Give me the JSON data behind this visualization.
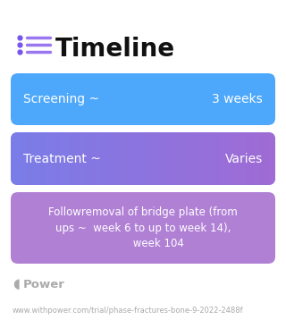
{
  "title": "Timeline",
  "background_color": "#ffffff",
  "title_color": "#111111",
  "title_fontsize": 20,
  "icon_color": "#7755ee",
  "icon_line_color": "#9977ee",
  "cards": [
    {
      "label_left": "Screening ~",
      "label_right": "3 weeks",
      "color_left": "#4da8fb",
      "color_right": "#4da8fb",
      "text_color": "#ffffff",
      "text_fontsize": 10
    },
    {
      "label_left": "Treatment ~",
      "label_right": "Varies",
      "color_left": "#7a7de8",
      "color_right": "#a06bd5",
      "text_color": "#ffffff",
      "text_fontsize": 10
    },
    {
      "label_left": "Followremoval of bridge plate (from\nups ~  week 6 to up to week 14),\n         week 104",
      "label_right": "",
      "color_left": "#b080d5",
      "color_right": "#b080d5",
      "text_color": "#ffffff",
      "text_fontsize": 8.5
    }
  ],
  "footer_logo_text": "Power",
  "footer_url": "www.withpower.com/trial/phase-fractures-bone-9-2022-2488f",
  "footer_color": "#aaaaaa",
  "footer_fontsize": 6.0,
  "footer_logo_fontsize": 9.5
}
